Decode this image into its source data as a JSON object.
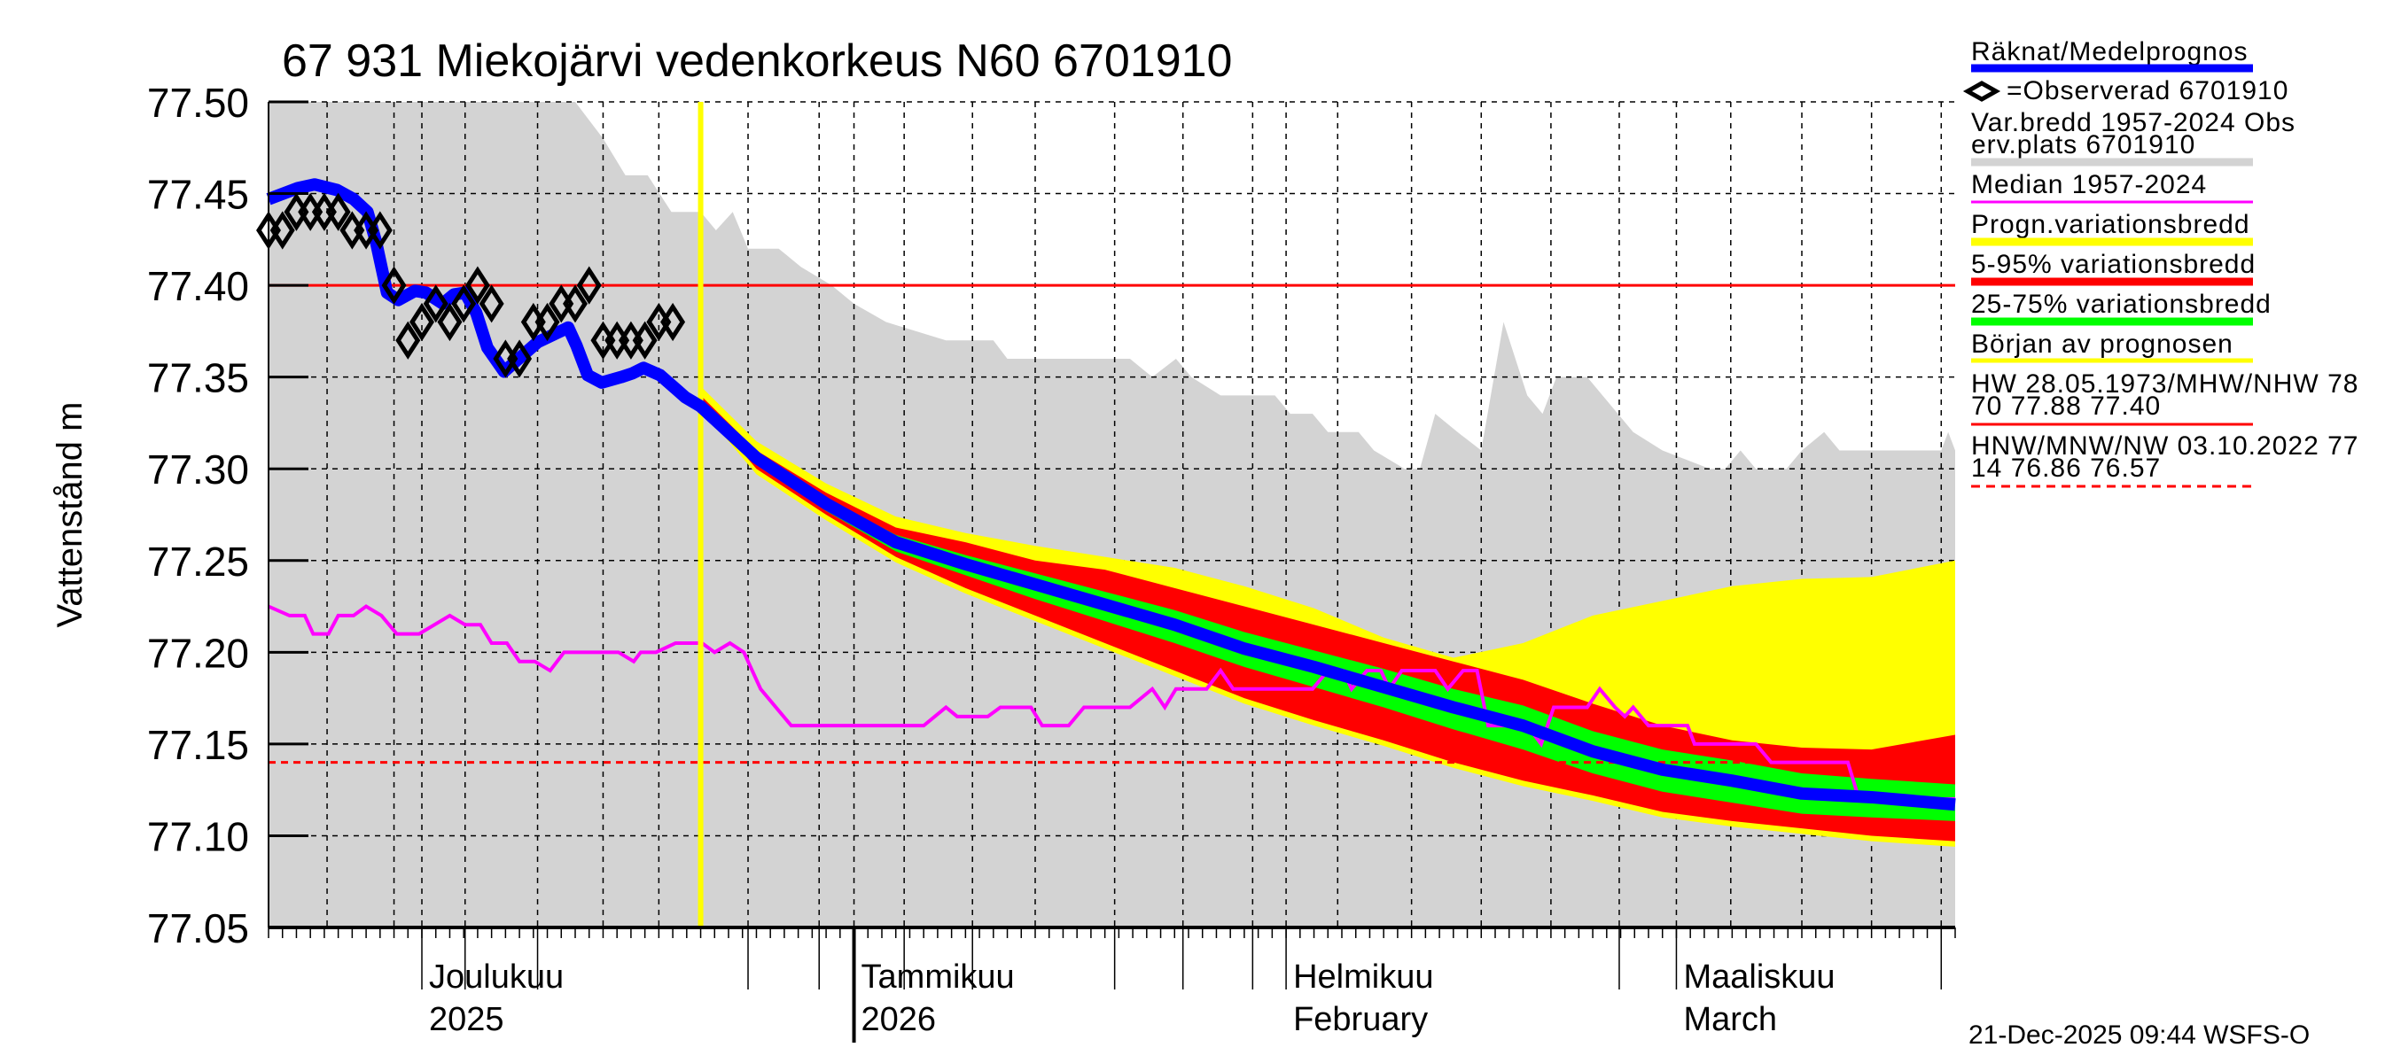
{
  "chart_data": {
    "type": "line",
    "title": "67 931 Miekojärvi vedenkorkeus N60 6701910",
    "ylabel": "Vattenstånd m",
    "xlabel": "",
    "x_unit": "days since 20-Nov-2025",
    "xlim": [
      0,
      121
    ],
    "ylim": [
      77.05,
      77.5
    ],
    "yticks": [
      "77.50",
      "77.45",
      "77.40",
      "77.35",
      "77.30",
      "77.25",
      "77.20",
      "77.15",
      "77.10",
      "77.05"
    ],
    "ytick_values": [
      77.5,
      77.45,
      77.4,
      77.35,
      77.3,
      77.25,
      77.2,
      77.15,
      77.1,
      77.05
    ],
    "grid": true,
    "month_labels": [
      {
        "day": 11,
        "line1": "Joulukuu",
        "line2": "2025"
      },
      {
        "day": 42,
        "line1": "Tammikuu",
        "line2": "2026"
      },
      {
        "day": 73,
        "line1": "Helmikuu",
        "line2": "February"
      },
      {
        "day": 101,
        "line1": "Maaliskuu",
        "line2": "March"
      }
    ],
    "forecast_start_day": 31,
    "reference_lines": {
      "mhw_nhw": 77.4,
      "nw_line": 77.14
    },
    "variation_band_upper": [
      [
        0,
        77.5
      ],
      [
        22,
        77.5
      ],
      [
        24,
        77.48
      ],
      [
        25.6,
        77.46
      ],
      [
        27.2,
        77.46
      ],
      [
        28.9,
        77.44
      ],
      [
        31,
        77.44
      ],
      [
        32.1,
        77.43
      ],
      [
        33.3,
        77.44
      ],
      [
        34.4,
        77.42
      ],
      [
        36.6,
        77.42
      ],
      [
        38.2,
        77.41
      ],
      [
        40.4,
        77.4
      ],
      [
        42,
        77.39
      ],
      [
        44.3,
        77.38
      ],
      [
        48.6,
        77.37
      ],
      [
        52,
        77.37
      ],
      [
        53,
        77.36
      ],
      [
        61.8,
        77.36
      ],
      [
        63.4,
        77.35
      ],
      [
        65.1,
        77.36
      ],
      [
        66.2,
        77.35
      ],
      [
        68.3,
        77.34
      ],
      [
        72.2,
        77.34
      ],
      [
        73.3,
        77.33
      ],
      [
        74.9,
        77.33
      ],
      [
        76,
        77.32
      ],
      [
        78.2,
        77.32
      ],
      [
        79.3,
        77.31
      ],
      [
        81.5,
        77.3
      ],
      [
        82.6,
        77.3
      ],
      [
        83.7,
        77.33
      ],
      [
        85.3,
        77.32
      ],
      [
        87,
        77.31
      ],
      [
        88.6,
        77.38
      ],
      [
        90.3,
        77.34
      ],
      [
        91.4,
        77.33
      ],
      [
        92.4,
        77.35
      ],
      [
        94.6,
        77.35
      ],
      [
        95.7,
        77.34
      ],
      [
        97.9,
        77.32
      ],
      [
        100,
        77.31
      ],
      [
        103.4,
        77.3
      ],
      [
        104.5,
        77.3
      ],
      [
        105.6,
        77.31
      ],
      [
        106.7,
        77.3
      ],
      [
        108.9,
        77.3
      ],
      [
        110,
        77.31
      ],
      [
        111.6,
        77.32
      ],
      [
        112.7,
        77.31
      ],
      [
        120,
        77.31
      ],
      [
        120.5,
        77.32
      ],
      [
        121,
        77.31
      ]
    ],
    "median": [
      [
        0,
        77.225
      ],
      [
        1.5,
        77.22
      ],
      [
        2.6,
        77.22
      ],
      [
        3.2,
        77.21
      ],
      [
        4.3,
        77.21
      ],
      [
        5,
        77.22
      ],
      [
        6.1,
        77.22
      ],
      [
        7,
        77.225
      ],
      [
        8.1,
        77.22
      ],
      [
        9.2,
        77.21
      ],
      [
        10.8,
        77.21
      ],
      [
        13,
        77.22
      ],
      [
        14.1,
        77.215
      ],
      [
        15.2,
        77.215
      ],
      [
        16,
        77.205
      ],
      [
        17.1,
        77.205
      ],
      [
        18,
        77.195
      ],
      [
        19.1,
        77.195
      ],
      [
        20.2,
        77.19
      ],
      [
        21.2,
        77.2
      ],
      [
        25.1,
        77.2
      ],
      [
        26.2,
        77.195
      ],
      [
        26.7,
        77.2
      ],
      [
        27.8,
        77.2
      ],
      [
        29.2,
        77.205
      ],
      [
        31.1,
        77.205
      ],
      [
        32,
        77.2
      ],
      [
        33.1,
        77.205
      ],
      [
        34.1,
        77.2
      ],
      [
        35.3,
        77.18
      ],
      [
        37.5,
        77.16
      ],
      [
        47,
        77.16
      ],
      [
        48.6,
        77.17
      ],
      [
        49.4,
        77.165
      ],
      [
        51.6,
        77.165
      ],
      [
        52.5,
        77.17
      ],
      [
        54.7,
        77.17
      ],
      [
        55.5,
        77.16
      ],
      [
        57.4,
        77.16
      ],
      [
        58.5,
        77.17
      ],
      [
        61.8,
        77.17
      ],
      [
        63.4,
        77.18
      ],
      [
        64.3,
        77.17
      ],
      [
        65.1,
        77.18
      ],
      [
        67.3,
        77.18
      ],
      [
        68.3,
        77.19
      ],
      [
        69.2,
        77.18
      ],
      [
        74.9,
        77.18
      ],
      [
        76,
        77.19
      ],
      [
        77.1,
        77.19
      ],
      [
        77.7,
        77.18
      ],
      [
        78.8,
        77.19
      ],
      [
        79.8,
        77.19
      ],
      [
        80.4,
        77.18
      ],
      [
        81.3,
        77.19
      ],
      [
        83.7,
        77.19
      ],
      [
        84.6,
        77.18
      ],
      [
        85.7,
        77.19
      ],
      [
        86.7,
        77.19
      ],
      [
        87.5,
        77.16
      ],
      [
        90.3,
        77.16
      ],
      [
        91.3,
        77.15
      ],
      [
        92.2,
        77.17
      ],
      [
        94.6,
        77.17
      ],
      [
        95.5,
        77.18
      ],
      [
        96.6,
        77.17
      ],
      [
        97.3,
        77.165
      ],
      [
        97.9,
        77.17
      ],
      [
        99,
        77.16
      ],
      [
        101.8,
        77.16
      ],
      [
        102.3,
        77.15
      ],
      [
        106.7,
        77.15
      ],
      [
        107.8,
        77.14
      ],
      [
        113.3,
        77.14
      ],
      [
        114.1,
        77.12
      ],
      [
        121,
        77.12
      ]
    ],
    "observed": {
      "start_day": 0,
      "values": [
        77.43,
        77.43,
        77.44,
        77.44,
        77.44,
        77.44,
        77.43,
        77.43,
        77.43,
        77.4,
        77.37,
        77.38,
        77.39,
        77.38,
        77.39,
        77.4,
        77.39,
        77.36,
        77.36,
        77.38,
        77.38,
        77.39,
        77.39,
        77.4,
        77.37,
        77.37,
        77.37,
        77.37,
        77.38,
        77.38
      ]
    },
    "simulated": [
      [
        0,
        77.447
      ],
      [
        2.1,
        77.453
      ],
      [
        3.3,
        77.455
      ],
      [
        4.9,
        77.452
      ],
      [
        6.1,
        77.447
      ],
      [
        7.1,
        77.44
      ],
      [
        7.7,
        77.424
      ],
      [
        8.5,
        77.396
      ],
      [
        9.3,
        77.392
      ],
      [
        10.5,
        77.397
      ],
      [
        11.3,
        77.396
      ],
      [
        12.5,
        77.39
      ],
      [
        13.3,
        77.395
      ],
      [
        14.1,
        77.396
      ],
      [
        14.9,
        77.385
      ],
      [
        15.7,
        77.366
      ],
      [
        16.9,
        77.353
      ],
      [
        18.1,
        77.361
      ],
      [
        19.3,
        77.369
      ],
      [
        21.5,
        77.377
      ],
      [
        22.1,
        77.367
      ],
      [
        22.9,
        77.351
      ],
      [
        23.9,
        77.347
      ],
      [
        25.3,
        77.35
      ],
      [
        26.1,
        77.352
      ],
      [
        26.9,
        77.355
      ],
      [
        28.1,
        77.351
      ],
      [
        29.3,
        77.343
      ],
      [
        29.9,
        77.339
      ]
    ],
    "forecast": {
      "days": [
        31,
        35,
        40,
        45,
        50,
        55,
        60,
        65,
        70,
        75,
        80,
        85,
        90,
        95,
        100,
        105,
        110,
        115,
        121
      ],
      "mean": [
        77.334,
        77.306,
        77.281,
        77.26,
        77.248,
        77.237,
        77.226,
        77.215,
        77.202,
        77.192,
        77.181,
        77.17,
        77.16,
        77.146,
        77.136,
        77.13,
        77.123,
        77.121,
        77.117
      ],
      "range_upper": [
        77.345,
        77.315,
        77.292,
        77.274,
        77.265,
        77.258,
        77.252,
        77.246,
        77.236,
        77.224,
        77.208,
        77.197,
        77.205,
        77.22,
        77.228,
        77.236,
        77.24,
        77.241,
        77.25
      ],
      "range_lower": [
        77.333,
        77.297,
        77.272,
        77.249,
        77.232,
        77.217,
        77.202,
        77.187,
        77.172,
        77.16,
        77.149,
        77.137,
        77.127,
        77.119,
        77.11,
        77.105,
        77.101,
        77.097,
        77.094
      ],
      "p95": [
        77.34,
        77.31,
        77.287,
        77.268,
        77.26,
        77.25,
        77.245,
        77.235,
        77.225,
        77.215,
        77.205,
        77.195,
        77.185,
        77.172,
        77.16,
        77.152,
        77.148,
        77.147,
        77.155
      ],
      "p5": [
        77.336,
        77.3,
        77.275,
        77.252,
        77.235,
        77.22,
        77.205,
        77.19,
        77.175,
        77.163,
        77.152,
        77.14,
        77.13,
        77.122,
        77.113,
        77.108,
        77.104,
        77.1,
        77.097
      ],
      "p75": [
        77.336,
        77.309,
        77.284,
        77.264,
        77.253,
        77.243,
        77.233,
        77.223,
        77.211,
        77.201,
        77.191,
        77.18,
        77.171,
        77.157,
        77.147,
        77.141,
        77.134,
        77.131,
        77.128
      ],
      "p25": [
        77.334,
        77.303,
        77.277,
        77.255,
        77.242,
        77.229,
        77.217,
        77.205,
        77.192,
        77.181,
        77.17,
        77.158,
        77.147,
        77.134,
        77.124,
        77.118,
        77.112,
        77.11,
        77.108
      ]
    },
    "legend_placement": "right",
    "legend": [
      {
        "lines": [
          "Räknat/Medelprognos"
        ],
        "color": "#0000ff",
        "style": "thick"
      },
      {
        "lines": [
          "=Observerad 6701910"
        ],
        "color": "#000000",
        "style": "diamond"
      },
      {
        "lines": [
          "Var.bredd 1957-2024   Obs",
          "erv.plats 6701910"
        ],
        "color": "#d3d3d3",
        "style": "thick"
      },
      {
        "lines": [
          "Median 1957-2024"
        ],
        "color": "#ff00ff",
        "style": "thin"
      },
      {
        "lines": [
          "Progn.variationsbredd"
        ],
        "color": "#ffff00",
        "style": "thick"
      },
      {
        "lines": [
          "5-95% variationsbredd"
        ],
        "color": "#ff0000",
        "style": "thick"
      },
      {
        "lines": [
          "25-75% variationsbredd"
        ],
        "color": "#00ff00",
        "style": "thick"
      },
      {
        "lines": [
          "Början av prognosen"
        ],
        "color": "#ffff00",
        "style": "medium"
      },
      {
        "lines": [
          "HW 28.05.1973/MHW/NHW 78",
          "70 77.88 77.40"
        ],
        "color": "#ff0000",
        "style": "thin"
      },
      {
        "lines": [
          "HNW/MNW/NW 03.10.2022 77",
          "14 76.86 76.57"
        ],
        "color": "#ff0000",
        "style": "dashed"
      }
    ]
  },
  "timestamp": "21-Dec-2025 09:44 WSFS-O",
  "colors": {
    "gray": "#d3d3d3",
    "blue": "#0000ff",
    "magenta": "#ff00ff",
    "yellow": "#ffff00",
    "red": "#ff0000",
    "green": "#00ff00"
  }
}
